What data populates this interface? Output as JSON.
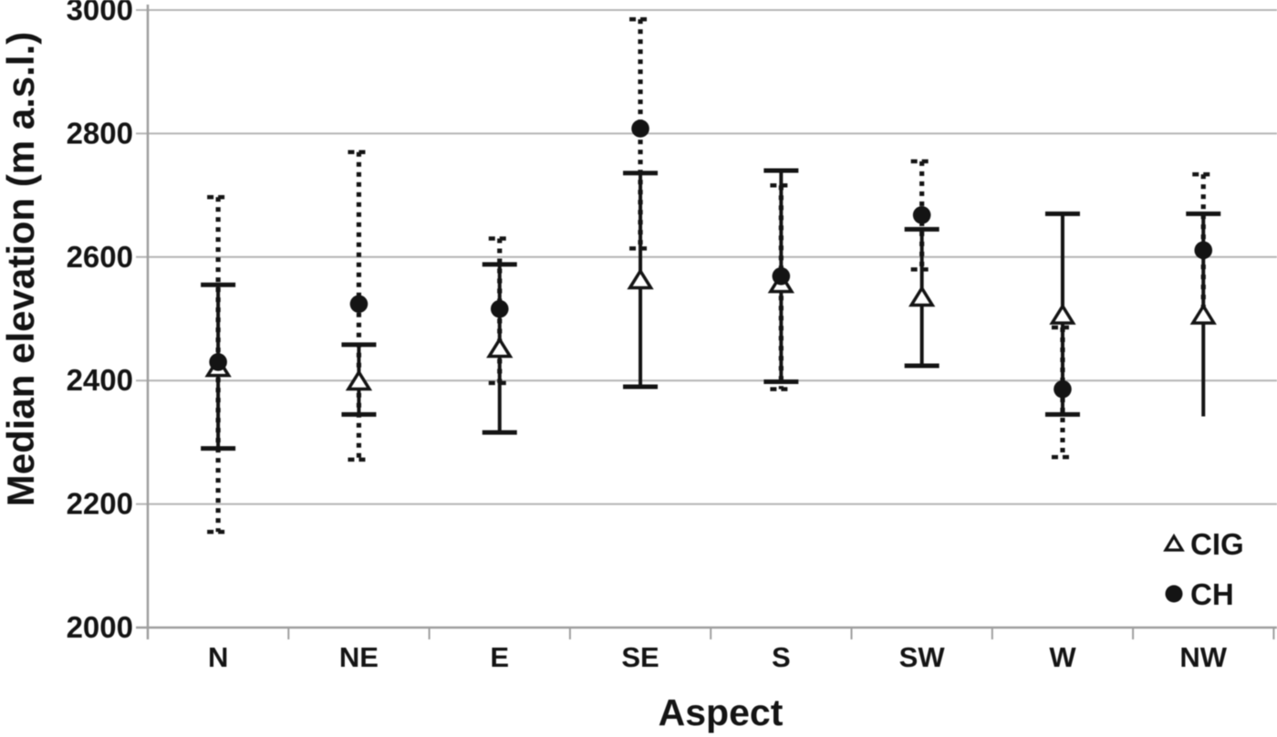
{
  "chart_data": {
    "type": "scatter",
    "title": "",
    "xlabel": "Aspect",
    "ylabel": "Median elevation (m a.s.l.)",
    "ylim": [
      2000,
      3000
    ],
    "yticks": [
      2000,
      2200,
      2400,
      2600,
      2800,
      3000
    ],
    "categories": [
      "N",
      "NE",
      "E",
      "SE",
      "S",
      "SW",
      "W",
      "NW"
    ],
    "grid": true,
    "legend_position": "bottom-right",
    "series": [
      {
        "name": "CIG",
        "marker": "open-triangle",
        "errorbar_style": "solid",
        "values": [
          2420,
          2398,
          2451,
          2562,
          2556,
          2534,
          2505,
          2505
        ],
        "err_low": [
          2290,
          2345,
          2316,
          2390,
          2398,
          2424,
          2345,
          2342
        ],
        "err_high": [
          2555,
          2458,
          2588,
          2736,
          2740,
          2645,
          2670,
          2670
        ],
        "cap_low": [
          true,
          true,
          true,
          true,
          true,
          true,
          true,
          false
        ],
        "cap_high": [
          true,
          true,
          true,
          true,
          true,
          true,
          true,
          true
        ]
      },
      {
        "name": "CH",
        "marker": "filled-circle",
        "errorbar_style": "dashed",
        "values": [
          2430,
          2524,
          2516,
          2808,
          2569,
          2668,
          2386,
          2611
        ],
        "err_low": [
          2155,
          2272,
          2396,
          2614,
          2386,
          2580,
          2276,
          2495
        ],
        "err_high": [
          2697,
          2770,
          2630,
          2985,
          2716,
          2755,
          2486,
          2734
        ],
        "cap_low": [
          true,
          true,
          true,
          true,
          true,
          true,
          true,
          false
        ],
        "cap_high": [
          true,
          true,
          true,
          true,
          true,
          true,
          true,
          true
        ]
      }
    ],
    "colors": {
      "ink": "#141414",
      "grid": "#b4b4b4",
      "axis": "#9e9e9e"
    }
  }
}
